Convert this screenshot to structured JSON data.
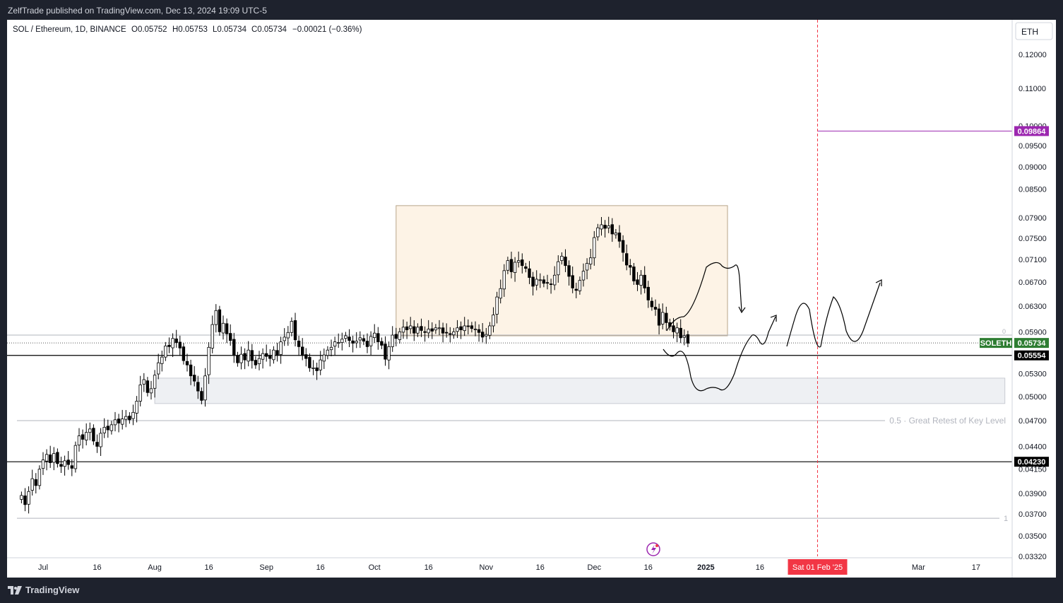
{
  "header": {
    "published": "ZelfTrade published on TradingView.com, Dec 13, 2024 19:09 UTC-5"
  },
  "legend": {
    "symbol": "SOL / Ethereum, 1D, BINANCE",
    "o": "O0.05752",
    "h": "H0.05753",
    "l": "L0.05734",
    "c": "C0.05734",
    "change": "−0.00021 (−0.36%)"
  },
  "currency_button": "ETH",
  "footer": {
    "brand": "TradingView"
  },
  "colors": {
    "bull": "#ffffff",
    "bear": "#000000",
    "zone_fill": "#fdf3e6",
    "support_fill": "#eef0f3",
    "vline": "#f23645",
    "purple": "#9c27b0",
    "green": "#2e7d32"
  },
  "chart_data": {
    "type": "candlestick",
    "scale": "log",
    "ylim": [
      0.0332,
      0.1265
    ],
    "y_ticks": [
      "0.12000",
      "0.11000",
      "0.10000",
      "0.09500",
      "0.09000",
      "0.08500",
      "0.07900",
      "0.07500",
      "0.07100",
      "0.06700",
      "0.06300",
      "0.05900",
      "0.05300",
      "0.05000",
      "0.04700",
      "0.04400",
      "0.04150",
      "0.03900",
      "0.03700",
      "0.03500",
      "0.03320"
    ],
    "x_ticks": [
      {
        "label": "Jul",
        "date": "2024-07-01"
      },
      {
        "label": "16",
        "date": "2024-07-16"
      },
      {
        "label": "Aug",
        "date": "2024-08-01"
      },
      {
        "label": "16",
        "date": "2024-08-16"
      },
      {
        "label": "Sep",
        "date": "2024-09-01"
      },
      {
        "label": "16",
        "date": "2024-09-16"
      },
      {
        "label": "Oct",
        "date": "2024-10-01"
      },
      {
        "label": "16",
        "date": "2024-10-16"
      },
      {
        "label": "Nov",
        "date": "2024-11-01"
      },
      {
        "label": "16",
        "date": "2024-11-16"
      },
      {
        "label": "Dec",
        "date": "2024-12-01"
      },
      {
        "label": "16",
        "date": "2024-12-16"
      },
      {
        "label": "2025",
        "date": "2025-01-01",
        "bold": true
      },
      {
        "label": "16",
        "date": "2025-01-16"
      },
      {
        "label": "Mar",
        "date": "2025-03-01"
      },
      {
        "label": "17",
        "date": "2025-03-17"
      }
    ],
    "closes_start": "2024-06-25",
    "closes": [
      0.0388,
      0.0379,
      0.0392,
      0.0405,
      0.0398,
      0.0415,
      0.0425,
      0.0431,
      0.0422,
      0.0432,
      0.0421,
      0.0418,
      0.0424,
      0.042,
      0.0416,
      0.0441,
      0.0452,
      0.0448,
      0.0456,
      0.046,
      0.0446,
      0.044,
      0.0455,
      0.0462,
      0.0459,
      0.0465,
      0.0471,
      0.0467,
      0.0472,
      0.0475,
      0.0471,
      0.048,
      0.0494,
      0.0515,
      0.0522,
      0.0505,
      0.051,
      0.0528,
      0.0545,
      0.0553,
      0.0569,
      0.0568,
      0.058,
      0.0574,
      0.0566,
      0.0548,
      0.0542,
      0.0527,
      0.052,
      0.0507,
      0.0495,
      0.0527,
      0.0567,
      0.0601,
      0.0623,
      0.059,
      0.0603,
      0.0587,
      0.0577,
      0.0556,
      0.0545,
      0.0557,
      0.0549,
      0.0563,
      0.0548,
      0.0542,
      0.0551,
      0.0558,
      0.0554,
      0.0551,
      0.0563,
      0.0556,
      0.0575,
      0.0582,
      0.0589,
      0.0606,
      0.0578,
      0.0568,
      0.0556,
      0.0551,
      0.0538,
      0.0538,
      0.0534,
      0.0549,
      0.0556,
      0.0563,
      0.0567,
      0.0575,
      0.0574,
      0.0579,
      0.0584,
      0.0577,
      0.0573,
      0.0576,
      0.0581,
      0.0576,
      0.0568,
      0.0583,
      0.0588,
      0.0575,
      0.057,
      0.055,
      0.0568,
      0.0585,
      0.058,
      0.059,
      0.0597,
      0.0593,
      0.0599,
      0.0588,
      0.0597,
      0.0592,
      0.0589,
      0.0594,
      0.0591,
      0.0596,
      0.0596,
      0.0588,
      0.0589,
      0.0586,
      0.059,
      0.0596,
      0.0593,
      0.0599,
      0.0598,
      0.0595,
      0.0594,
      0.0589,
      0.0582,
      0.0586,
      0.0599,
      0.0616,
      0.0645,
      0.0659,
      0.069,
      0.0708,
      0.0688,
      0.0705,
      0.0708,
      0.0699,
      0.0694,
      0.0678,
      0.0663,
      0.0675,
      0.0674,
      0.0668,
      0.0669,
      0.0666,
      0.0682,
      0.0706,
      0.0716,
      0.0699,
      0.068,
      0.066,
      0.0656,
      0.0673,
      0.0689,
      0.0703,
      0.0713,
      0.0751,
      0.077,
      0.0776,
      0.0769,
      0.0774,
      0.0758,
      0.076,
      0.0744,
      0.0723,
      0.07,
      0.0696,
      0.0672,
      0.0666,
      0.0682,
      0.066,
      0.064,
      0.0629,
      0.0625,
      0.06,
      0.062,
      0.0604,
      0.0598,
      0.059,
      0.0596,
      0.0581,
      0.0584,
      0.0573
    ],
    "price_labels": {
      "current": "0.05734",
      "ticker": "SOLETH",
      "p1": "0.05554",
      "p2": "0.04230",
      "target": "0.09864"
    },
    "fib_levels": [
      {
        "label": "0.5 · Great Retest of Key Level",
        "price": 0.047
      },
      {
        "label": "1",
        "price": 0.0366
      },
      {
        "label": "0",
        "price": 0.0585
      }
    ],
    "hlines": [
      0.05554,
      0.0423
    ],
    "zones": [
      {
        "name": "range",
        "from": "2024-10-07",
        "to": "2025-01-07",
        "top": 0.0815,
        "bottom": 0.0584
      },
      {
        "name": "support",
        "from": "2024-08-01",
        "to": "2025-03-25",
        "top": 0.0524,
        "bottom": 0.0491
      }
    ],
    "vline": {
      "date": "2025-02-01",
      "label": "Sat 01 Feb '25"
    },
    "target_line": {
      "from": "2025-02-01",
      "price": 0.09864
    }
  }
}
